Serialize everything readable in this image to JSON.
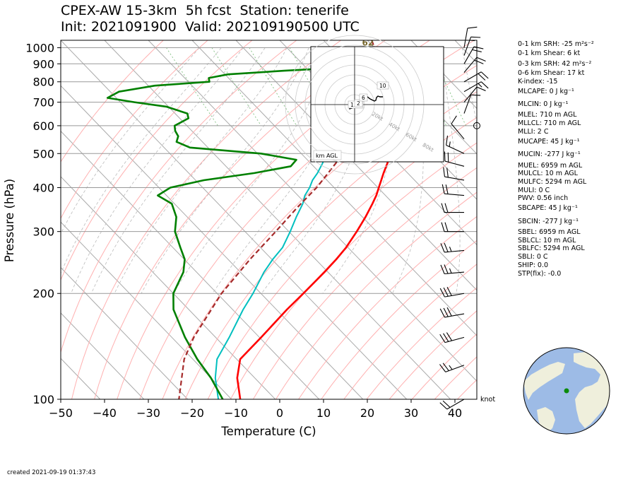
{
  "header": {
    "title_line1": "CPEX-AW 15-3km  5h fcst  Station: tenerife",
    "title_line2": "Init: 2021091900  Valid: 202109190500 UTC"
  },
  "footer": {
    "created": "created 2021-09-19 01:37:43"
  },
  "wind_unit_label": "knot",
  "indices": [
    "0-1 km SRH: -25 m²s⁻²",
    "0-1 km Shear: 6 kt",
    "0-3 km SRH: 42 m²s⁻²",
    "0-6 km Shear: 17 kt",
    "K-index: -15",
    "MLCAPE: 0 J kg⁻¹",
    "MLCIN: 0 J kg⁻¹",
    "MLEL: 710 m AGL",
    "MLLCL: 710 m AGL",
    "MLLI: 2 C",
    "MUCAPE: 45 J kg⁻¹",
    "MUCIN: -277 J kg⁻¹",
    "MUEL: 6959 m AGL",
    "MULCL: 10 m AGL",
    "MULFC: 5294 m AGL",
    "MULI: 0 C",
    "PWV: 0.56 inch",
    "SBCAPE: 45 J kg⁻¹",
    "SBCIN: -277 J kg⁻¹",
    "SBEL: 6959 m AGL",
    "SBLCL: 10 m AGL",
    "SBLFC: 5294 m AGL",
    "SBLI: 0 C",
    "SHIP: 0.0",
    "STP(fix): -0.0"
  ],
  "colors": {
    "temperature": "#ff0000",
    "dewpoint": "#008000",
    "wetbulb": "#00bfbf",
    "parcel": "#a52a2a",
    "isotherm": "#aaaaaa",
    "dry_adiabat": "#ffb0b0",
    "moist_adiabat": "#bbbbbb",
    "mixing_ratio": "#80c080",
    "ocean": "#9dbbe6",
    "land": "#efefdc"
  },
  "chart_data": {
    "type": "line",
    "xlabel": "Temperature (C)",
    "ylabel": "Pressure (hPa)",
    "xlim": [
      -50,
      45
    ],
    "ylim": [
      1050,
      100
    ],
    "y_scale": "log",
    "xticks": [
      "−50",
      "−40",
      "−30",
      "−20",
      "−10",
      "0",
      "10",
      "20",
      "30",
      "40"
    ],
    "xtick_values": [
      -50,
      -40,
      -30,
      -20,
      -10,
      0,
      10,
      20,
      30,
      40
    ],
    "yticks": [
      "100",
      "200",
      "300",
      "400",
      "500",
      "600",
      "700",
      "800",
      "900",
      "1000"
    ],
    "ytick_values": [
      100,
      200,
      300,
      400,
      500,
      600,
      700,
      800,
      900,
      1000
    ],
    "surface_annotation": "62",
    "series": [
      {
        "key": "temperature",
        "points": [
          [
            1010,
            20.3
          ],
          [
            960,
            18.6
          ],
          [
            930,
            17.6
          ],
          [
            900,
            16.8
          ],
          [
            880,
            16.2
          ],
          [
            860,
            15.6
          ],
          [
            850,
            15.8
          ],
          [
            830,
            16.9
          ],
          [
            810,
            17.3
          ],
          [
            780,
            16.9
          ],
          [
            750,
            16.4
          ],
          [
            720,
            15.6
          ],
          [
            700,
            14.5
          ],
          [
            680,
            12.9
          ],
          [
            650,
            10.5
          ],
          [
            620,
            8.6
          ],
          [
            600,
            7.3
          ],
          [
            570,
            5.4
          ],
          [
            540,
            3.4
          ],
          [
            500,
            0.3
          ],
          [
            470,
            -2.4
          ],
          [
            440,
            -5.5
          ],
          [
            420,
            -7.6
          ],
          [
            400,
            -9.8
          ],
          [
            380,
            -12.1
          ],
          [
            360,
            -14.8
          ],
          [
            330,
            -19.3
          ],
          [
            300,
            -24.5
          ],
          [
            270,
            -30.5
          ],
          [
            250,
            -35.3
          ],
          [
            230,
            -40.8
          ],
          [
            200,
            -50.3
          ],
          [
            180,
            -57.6
          ],
          [
            150,
            -69.6
          ],
          [
            130,
            -79.2
          ],
          [
            115,
            -84.0
          ],
          [
            100,
            -88.0
          ]
        ]
      },
      {
        "key": "wetbulb",
        "points": [
          [
            1010,
            18.6
          ],
          [
            980,
            17.8
          ],
          [
            950,
            17.2
          ],
          [
            920,
            16.4
          ],
          [
            900,
            15.9
          ],
          [
            880,
            14.8
          ],
          [
            860,
            12.6
          ],
          [
            840,
            10.2
          ],
          [
            820,
            7.8
          ],
          [
            800,
            5.3
          ],
          [
            780,
            3.8
          ],
          [
            760,
            2.6
          ],
          [
            740,
            1.6
          ],
          [
            700,
            -0.4
          ],
          [
            680,
            -1.4
          ],
          [
            650,
            -3.5
          ],
          [
            620,
            -5.7
          ],
          [
            600,
            -7.0
          ],
          [
            570,
            -9.0
          ],
          [
            540,
            -11.0
          ],
          [
            500,
            -14.4
          ],
          [
            470,
            -17.2
          ],
          [
            440,
            -20.6
          ],
          [
            420,
            -23.3
          ],
          [
            400,
            -25.6
          ],
          [
            380,
            -28.4
          ],
          [
            360,
            -30.7
          ],
          [
            330,
            -35.1
          ],
          [
            300,
            -39.7
          ],
          [
            270,
            -45.0
          ],
          [
            250,
            -49.8
          ],
          [
            230,
            -54.6
          ],
          [
            200,
            -61.8
          ],
          [
            180,
            -67.6
          ],
          [
            150,
            -76.9
          ],
          [
            130,
            -84.5
          ],
          [
            115,
            -89.0
          ],
          [
            100,
            -93.0
          ]
        ]
      },
      {
        "key": "dewpoint",
        "points": [
          [
            1010,
            18.5
          ],
          [
            980,
            17.2
          ],
          [
            950,
            16.2
          ],
          [
            920,
            14.8
          ],
          [
            900,
            13.2
          ],
          [
            880,
            9.9
          ],
          [
            860,
            -5.7
          ],
          [
            840,
            -19.3
          ],
          [
            820,
            -24.5
          ],
          [
            800,
            -25.2
          ],
          [
            780,
            -38.5
          ],
          [
            750,
            -48.0
          ],
          [
            720,
            -52.0
          ],
          [
            700,
            -46.8
          ],
          [
            680,
            -40.5
          ],
          [
            650,
            -37.2
          ],
          [
            630,
            -38.0
          ],
          [
            600,
            -42.8
          ],
          [
            580,
            -43.8
          ],
          [
            560,
            -44.3
          ],
          [
            540,
            -45.9
          ],
          [
            520,
            -44.1
          ],
          [
            500,
            -29.2
          ],
          [
            480,
            -22.5
          ],
          [
            460,
            -25.2
          ],
          [
            440,
            -35.0
          ],
          [
            420,
            -48.1
          ],
          [
            400,
            -57.4
          ],
          [
            380,
            -62.0
          ],
          [
            360,
            -60.6
          ],
          [
            330,
            -62.5
          ],
          [
            300,
            -66.0
          ],
          [
            270,
            -68.3
          ],
          [
            250,
            -69.9
          ],
          [
            230,
            -73.0
          ],
          [
            200,
            -80.0
          ],
          [
            180,
            -83.5
          ],
          [
            150,
            -87.0
          ],
          [
            130,
            -89.0
          ],
          [
            115,
            -90.0
          ],
          [
            100,
            -92.0
          ]
        ]
      },
      {
        "key": "parcel",
        "points": [
          [
            1050,
            21.0
          ],
          [
            1000,
            20.0
          ],
          [
            950,
            18.4
          ],
          [
            900,
            16.8
          ],
          [
            850,
            14.8
          ],
          [
            800,
            12.5
          ],
          [
            750,
            9.8
          ],
          [
            700,
            6.8
          ],
          [
            650,
            3.5
          ],
          [
            600,
            -0.3
          ],
          [
            550,
            -4.9
          ],
          [
            500,
            -10.4
          ],
          [
            450,
            -16.8
          ],
          [
            400,
            -24.0
          ],
          [
            350,
            -33.0
          ],
          [
            300,
            -43.0
          ],
          [
            250,
            -55.0
          ],
          [
            200,
            -69.0
          ],
          [
            150,
            -85.0
          ],
          [
            130,
            -92.0
          ],
          [
            100,
            -102.0
          ]
        ]
      }
    ],
    "wind_barbs": [
      {
        "p": 100,
        "dir": 240,
        "spd": 20
      },
      {
        "p": 125,
        "dir": 250,
        "spd": 25
      },
      {
        "p": 150,
        "dir": 255,
        "spd": 30
      },
      {
        "p": 175,
        "dir": 260,
        "spd": 30
      },
      {
        "p": 200,
        "dir": 260,
        "spd": 30
      },
      {
        "p": 230,
        "dir": 265,
        "spd": 25
      },
      {
        "p": 265,
        "dir": 265,
        "spd": 25
      },
      {
        "p": 300,
        "dir": 270,
        "spd": 20
      },
      {
        "p": 340,
        "dir": 270,
        "spd": 20
      },
      {
        "p": 380,
        "dir": 275,
        "spd": 20
      },
      {
        "p": 420,
        "dir": 280,
        "spd": 20
      },
      {
        "p": 460,
        "dir": 285,
        "spd": 20
      },
      {
        "p": 500,
        "dir": 295,
        "spd": 15
      },
      {
        "p": 550,
        "dir": 320,
        "spd": 10
      },
      {
        "p": 600,
        "dir": 340,
        "spd": 0
      },
      {
        "p": 650,
        "dir": 20,
        "spd": 10
      },
      {
        "p": 700,
        "dir": 40,
        "spd": 10
      },
      {
        "p": 750,
        "dir": 60,
        "spd": 15
      },
      {
        "p": 800,
        "dir": 60,
        "spd": 20
      },
      {
        "p": 850,
        "dir": 40,
        "spd": 20
      },
      {
        "p": 900,
        "dir": 30,
        "spd": 20
      },
      {
        "p": 950,
        "dir": 20,
        "spd": 15
      },
      {
        "p": 1000,
        "dir": 10,
        "spd": 10
      }
    ],
    "hodograph": {
      "axis_label": "km AGL",
      "ring_labels": [
        "20kt",
        "40kt",
        "60kt",
        "80kt"
      ],
      "height_labels": [
        "1.5",
        "2",
        "6",
        "10"
      ],
      "points": [
        [
          -8,
          -2
        ],
        [
          -7,
          -6
        ],
        [
          -4,
          -5
        ],
        [
          -1,
          -4
        ],
        [
          1,
          -3
        ],
        [
          4,
          -3
        ],
        [
          7,
          -1
        ],
        [
          10,
          0
        ],
        [
          9,
          5
        ],
        [
          12,
          9
        ],
        [
          16,
          11
        ],
        [
          18,
          11
        ],
        [
          22,
          8
        ],
        [
          26,
          6
        ],
        [
          28,
          5
        ],
        [
          30,
          6
        ],
        [
          31,
          10
        ],
        [
          33,
          12
        ],
        [
          36,
          11
        ],
        [
          40,
          11
        ]
      ]
    }
  }
}
